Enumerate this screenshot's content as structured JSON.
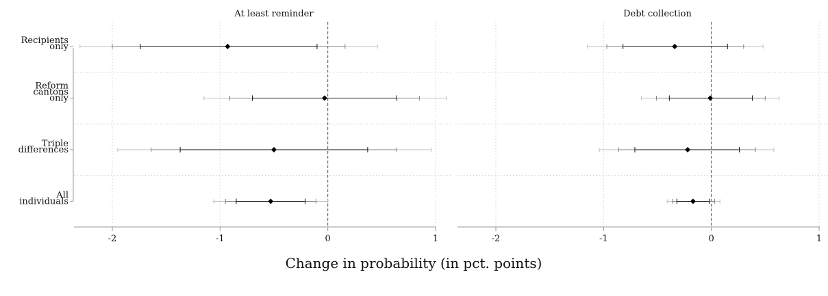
{
  "figure": {
    "xlabel": "Change in probability (in pct. points)"
  },
  "chart_data": [
    {
      "type": "coefficient-plot",
      "title": "At least reminder",
      "xlim": [
        -2,
        1
      ],
      "xticks": [
        -2,
        -1,
        0,
        1
      ],
      "xtick_labels": [
        "-2",
        "-1",
        "0",
        "1"
      ],
      "reference_line": 0,
      "grid": true,
      "categories": [
        {
          "lines": [
            "Recipients",
            "only"
          ]
        },
        {
          "lines": [
            "Reform",
            "cantons",
            "only"
          ]
        },
        {
          "lines": [
            "Triple",
            "differences"
          ]
        },
        {
          "lines": [
            "All",
            "individuals"
          ]
        }
      ],
      "estimates": [
        {
          "point": -0.93,
          "ci_inner": [
            -1.74,
            -0.1
          ],
          "ci_mid": [
            -2.0,
            0.16
          ],
          "ci_outer": [
            -2.3,
            0.46
          ]
        },
        {
          "point": -0.03,
          "ci_inner": [
            -0.7,
            0.64
          ],
          "ci_mid": [
            -0.91,
            0.85
          ],
          "ci_outer": [
            -1.15,
            1.1
          ]
        },
        {
          "point": -0.5,
          "ci_inner": [
            -1.37,
            0.37
          ],
          "ci_mid": [
            -1.64,
            0.64
          ],
          "ci_outer": [
            -1.95,
            0.96
          ]
        },
        {
          "point": -0.53,
          "ci_inner": [
            -0.85,
            -0.21
          ],
          "ci_mid": [
            -0.95,
            -0.11
          ],
          "ci_outer": [
            -1.06,
            0.0
          ]
        }
      ]
    },
    {
      "type": "coefficient-plot",
      "title": "Debt collection",
      "xlim": [
        -2,
        1
      ],
      "xticks": [
        -2,
        -1,
        0,
        1
      ],
      "xtick_labels": [
        "-2",
        "-1",
        "0",
        "1"
      ],
      "reference_line": 0,
      "grid": true,
      "categories": [
        {
          "lines": [
            "Recipients",
            "only"
          ]
        },
        {
          "lines": [
            "Reform",
            "cantons",
            "only"
          ]
        },
        {
          "lines": [
            "Triple",
            "differences"
          ]
        },
        {
          "lines": [
            "All",
            "individuals"
          ]
        }
      ],
      "estimates": [
        {
          "point": -0.34,
          "ci_inner": [
            -0.82,
            0.15
          ],
          "ci_mid": [
            -0.97,
            0.3
          ],
          "ci_outer": [
            -1.15,
            0.48
          ]
        },
        {
          "point": -0.01,
          "ci_inner": [
            -0.39,
            0.38
          ],
          "ci_mid": [
            -0.51,
            0.5
          ],
          "ci_outer": [
            -0.65,
            0.63
          ]
        },
        {
          "point": -0.22,
          "ci_inner": [
            -0.71,
            0.26
          ],
          "ci_mid": [
            -0.86,
            0.41
          ],
          "ci_outer": [
            -1.04,
            0.58
          ]
        },
        {
          "point": -0.17,
          "ci_inner": [
            -0.32,
            -0.02
          ],
          "ci_mid": [
            -0.36,
            0.03
          ],
          "ci_outer": [
            -0.41,
            0.08
          ]
        }
      ]
    }
  ]
}
